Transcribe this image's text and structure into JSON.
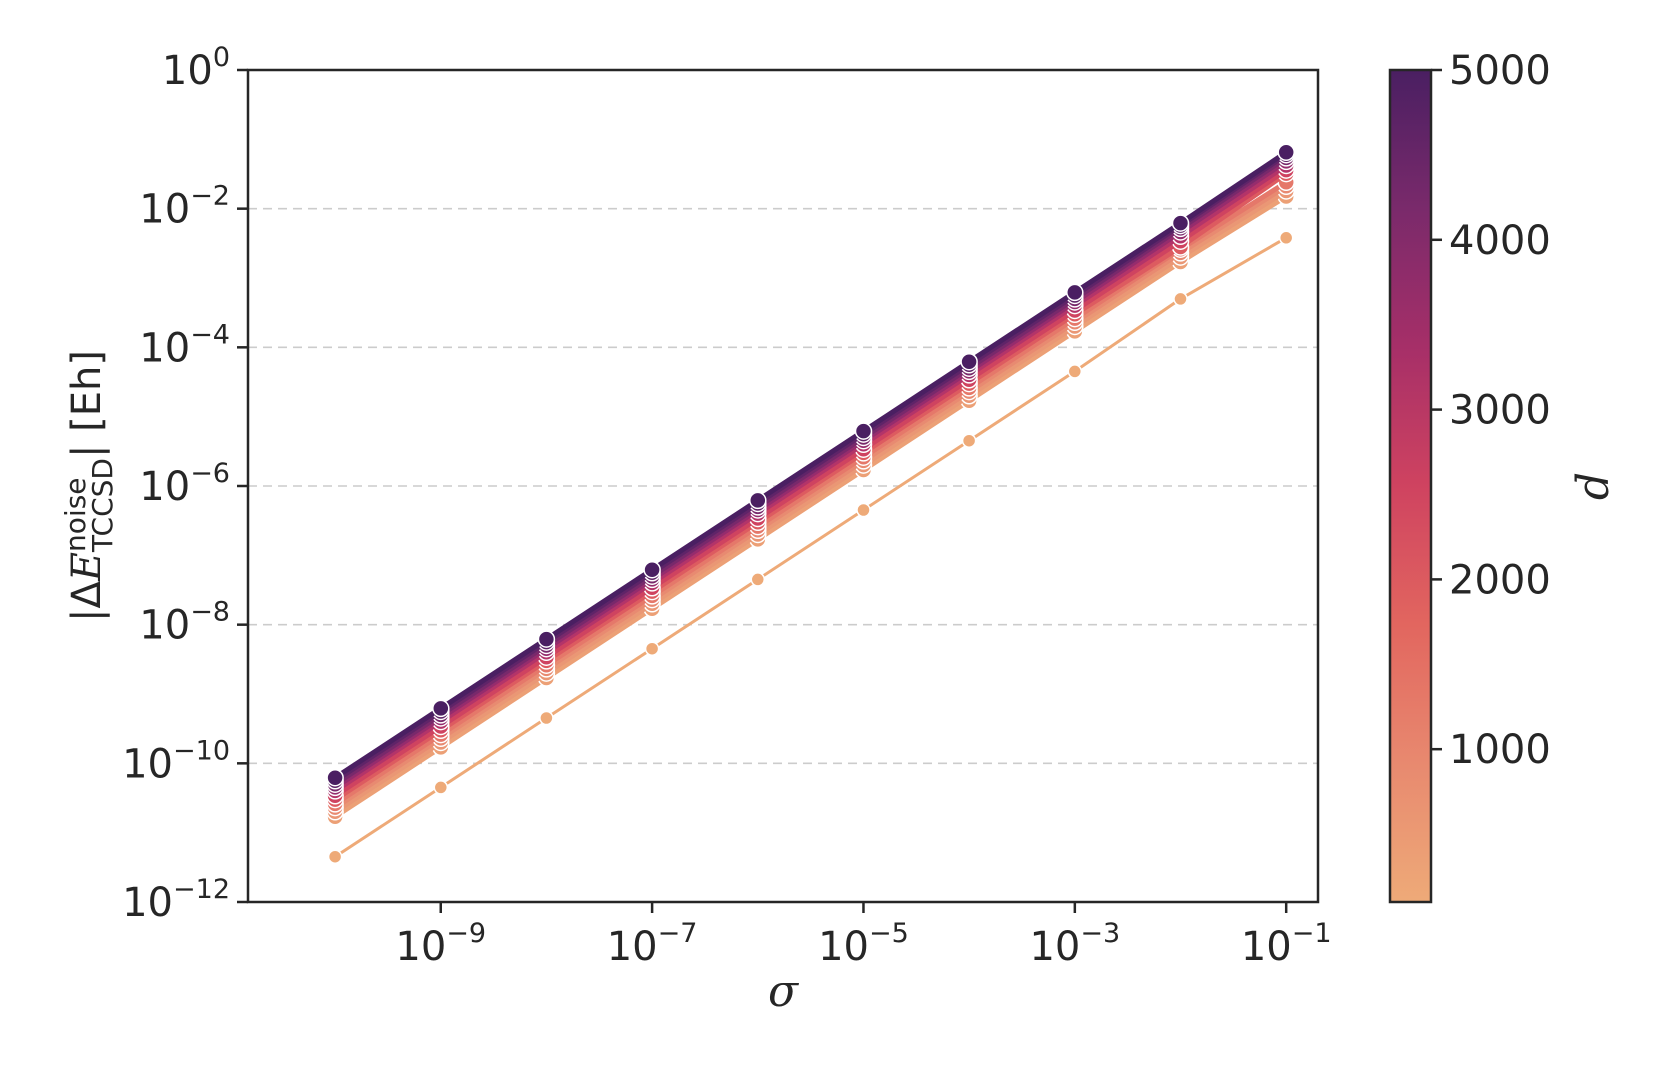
{
  "chart_data": {
    "type": "line",
    "title": "",
    "xlabel": "σ",
    "ylabel": {
      "prefix": "|Δ",
      "symbol": "E",
      "superscript": "noise",
      "subscript": "TCCSD",
      "suffix": "| [Eh]"
    },
    "xscale": "log",
    "yscale": "log",
    "xlim": [
      1.5e-11,
      0.2
    ],
    "ylim": [
      1e-12,
      1
    ],
    "x_ticks": [
      {
        "base": "10",
        "exp": "−9",
        "value": 1e-09
      },
      {
        "base": "10",
        "exp": "−7",
        "value": 1e-07
      },
      {
        "base": "10",
        "exp": "−5",
        "value": 1e-05
      },
      {
        "base": "10",
        "exp": "−3",
        "value": 0.001
      },
      {
        "base": "10",
        "exp": "−1",
        "value": 0.1
      }
    ],
    "y_ticks": [
      {
        "base": "10",
        "exp": "0",
        "value": 1
      },
      {
        "base": "10",
        "exp": "−2",
        "value": 0.01
      },
      {
        "base": "10",
        "exp": "−4",
        "value": 0.0001
      },
      {
        "base": "10",
        "exp": "−6",
        "value": 1e-06
      },
      {
        "base": "10",
        "exp": "−8",
        "value": 1e-08
      },
      {
        "base": "10",
        "exp": "−10",
        "value": 1e-10
      },
      {
        "base": "10",
        "exp": "−12",
        "value": 1e-12
      }
    ],
    "grid": {
      "y": "dashed",
      "x": "off"
    },
    "x": [
      1e-10,
      1e-09,
      1e-08,
      1e-07,
      1e-06,
      1e-05,
      0.0001,
      0.001,
      0.01,
      0.1
    ],
    "series": [
      {
        "d": 100,
        "color": "#eeaa78",
        "values": [
          4.5e-12,
          4.5e-11,
          4.5e-10,
          4.5e-09,
          4.5e-08,
          4.5e-07,
          4.5e-06,
          4.5e-05,
          0.0005,
          0.0038
        ]
      },
      {
        "d": 300,
        "color": "#eca076",
        "values": [
          1.7e-11,
          1.7e-10,
          1.7e-09,
          1.7e-08,
          1.7e-07,
          1.7e-06,
          1.7e-05,
          0.00017,
          0.0017,
          0.015
        ]
      },
      {
        "d": 500,
        "color": "#ea9775",
        "values": [
          2e-11,
          2e-10,
          2e-09,
          2e-08,
          2e-07,
          2e-06,
          2e-05,
          0.0002,
          0.002,
          0.018
        ]
      },
      {
        "d": 800,
        "color": "#e88a71",
        "values": [
          2.3e-11,
          2.3e-10,
          2.3e-09,
          2.3e-08,
          2.3e-07,
          2.3e-06,
          2.3e-05,
          0.00023,
          0.0023,
          0.021
        ]
      },
      {
        "d": 1200,
        "color": "#e5786a",
        "values": [
          2.6e-11,
          2.6e-10,
          2.6e-09,
          2.6e-08,
          2.6e-07,
          2.6e-06,
          2.6e-05,
          0.00026,
          0.0026,
          0.024
        ]
      },
      {
        "d": 1800,
        "color": "#dd5b60",
        "values": [
          3e-11,
          3e-10,
          3e-09,
          3e-08,
          3e-07,
          3e-06,
          3e-05,
          0.0003,
          0.0028,
          0.032
        ]
      },
      {
        "d": 2200,
        "color": "#cf4360",
        "values": [
          3.4e-11,
          3.4e-10,
          3.4e-09,
          3.4e-08,
          3.4e-07,
          3.4e-06,
          3.4e-05,
          0.00034,
          0.0034,
          0.036
        ]
      },
      {
        "d": 2800,
        "color": "#b33469",
        "values": [
          4e-11,
          4e-10,
          4e-09,
          4e-08,
          4e-07,
          4e-06,
          4e-05,
          0.0004,
          0.004,
          0.042
        ]
      },
      {
        "d": 3300,
        "color": "#952c6d",
        "values": [
          4.5e-11,
          4.5e-10,
          4.5e-09,
          4.5e-08,
          4.5e-07,
          4.5e-06,
          4.5e-05,
          0.00045,
          0.0046,
          0.048
        ]
      },
      {
        "d": 3800,
        "color": "#78296b",
        "values": [
          5e-11,
          5e-10,
          5e-09,
          5e-08,
          5e-07,
          5e-06,
          5e-05,
          0.0005,
          0.0052,
          0.054
        ]
      },
      {
        "d": 4300,
        "color": "#5f2468",
        "values": [
          5.6e-11,
          5.6e-10,
          5.6e-09,
          5.6e-08,
          5.6e-07,
          5.6e-06,
          5.6e-05,
          0.00056,
          0.0057,
          0.06
        ]
      },
      {
        "d": 5000,
        "color": "#4a1f62",
        "values": [
          6.2e-11,
          6.2e-10,
          6.2e-09,
          6.2e-08,
          6.2e-07,
          6.2e-06,
          6.2e-05,
          0.00062,
          0.0062,
          0.065
        ]
      }
    ],
    "colorbar": {
      "label": "d",
      "min": 100,
      "max": 5000,
      "ticks": [
        {
          "label": "1000",
          "value": 1000
        },
        {
          "label": "2000",
          "value": 2000
        },
        {
          "label": "3000",
          "value": 3000
        },
        {
          "label": "4000",
          "value": 4000
        },
        {
          "label": "5000",
          "value": 5000
        }
      ],
      "colors": [
        "#eeaa78",
        "#e8896f",
        "#e2665f",
        "#cf4360",
        "#a62f68",
        "#7a2a6b",
        "#4a1f62"
      ]
    }
  }
}
